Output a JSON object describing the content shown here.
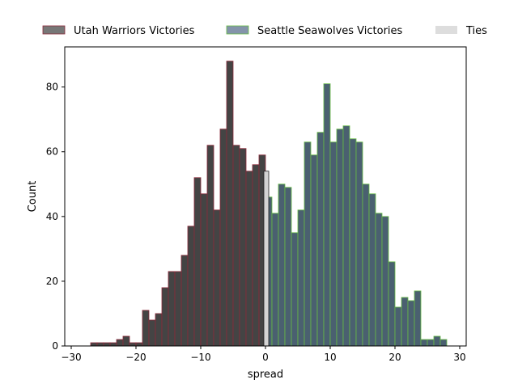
{
  "chart_data": {
    "type": "bar",
    "xlabel": "spread",
    "ylabel": "Count",
    "xlim": [
      -31,
      31
    ],
    "ylim": [
      0,
      92.4
    ],
    "x_ticks": [
      -30,
      -20,
      -10,
      0,
      10,
      20,
      30
    ],
    "x_tick_labels": [
      "−30",
      "−20",
      "−10",
      "0",
      "10",
      "20",
      "30"
    ],
    "y_ticks": [
      0,
      20,
      40,
      60,
      80
    ],
    "y_tick_labels": [
      "0",
      "20",
      "40",
      "60",
      "80"
    ],
    "grid": false,
    "legend_position": "top",
    "bin_width": 1,
    "series": [
      {
        "name": "Utah Warriors Victories",
        "color": "#444444",
        "edge_color": "#8b2a3a",
        "legend_color": "#777777",
        "bins_start": [
          -27,
          -26,
          -25,
          -24,
          -23,
          -22,
          -21,
          -20,
          -19,
          -18,
          -17,
          -16,
          -15,
          -14,
          -13,
          -12,
          -11,
          -10,
          -9,
          -8,
          -7,
          -6,
          -5,
          -4,
          -3,
          -2,
          -1
        ],
        "counts": [
          1,
          1,
          1,
          1,
          2,
          3,
          1,
          1,
          11,
          8,
          10,
          18,
          23,
          23,
          28,
          37,
          52,
          47,
          62,
          42,
          67,
          88,
          62,
          61,
          54,
          56,
          59
        ]
      },
      {
        "name": "Seattle Seawolves Victories",
        "color": "#4a6070",
        "edge_color": "#66bb44",
        "legend_color": "#8494aa",
        "bins_start": [
          0,
          1,
          2,
          3,
          4,
          5,
          6,
          7,
          8,
          9,
          10,
          11,
          12,
          13,
          14,
          15,
          16,
          17,
          18,
          19,
          20,
          21,
          22,
          23,
          24,
          25,
          26,
          27
        ],
        "counts": [
          46,
          41,
          50,
          49,
          35,
          42,
          63,
          59,
          66,
          81,
          63,
          67,
          68,
          64,
          63,
          50,
          47,
          41,
          40,
          26,
          12,
          15,
          14,
          17,
          2,
          2,
          3,
          2
        ]
      },
      {
        "name": "Ties",
        "color": "#d4d4d4",
        "edge_color": "#222222",
        "legend_color": "#dddddd",
        "bins_start": [
          -0.25
        ],
        "bin_width": 0.75,
        "counts": [
          54
        ]
      }
    ]
  }
}
